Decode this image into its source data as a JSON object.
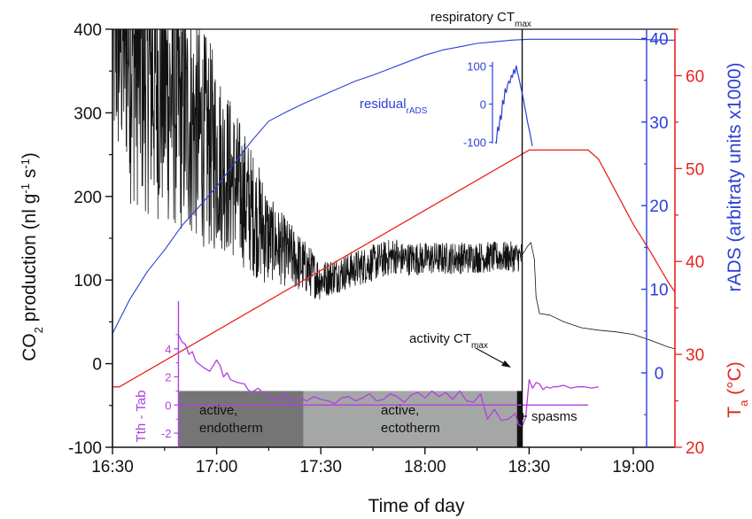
{
  "chart_data": {
    "type": "line",
    "xlabel": "Time of day",
    "x_ticks": [
      "16:30",
      "17:00",
      "17:30",
      "18:00",
      "18:30",
      "19:00"
    ],
    "x_range": [
      "16:30",
      "19:12"
    ],
    "axes": {
      "left": {
        "label_main": "CO",
        "label_sub1": "2",
        "label_mid": " production (nl g",
        "label_sup1": "-1",
        "label_mid2": " s",
        "label_sup2": "-1",
        "label_end": ")",
        "range": [
          -100,
          400
        ],
        "ticks": [
          "-100",
          "0",
          "100",
          "200",
          "300",
          "400"
        ],
        "color": "#111111"
      },
      "right_inner": {
        "label": "rADS (arbitraty units x1000)",
        "range": [
          -8.9,
          41.1
        ],
        "ticks": [
          "0",
          "10",
          "20",
          "30",
          "40"
        ],
        "color": "#2a3fd6"
      },
      "right_outer": {
        "label_main": "T",
        "label_sub": "a",
        "label_end": " (°C)",
        "range": [
          20,
          65
        ],
        "ticks": [
          "20",
          "30",
          "40",
          "50",
          "60"
        ],
        "color": "#e8231e"
      },
      "inset_left": {
        "label": "Tth - Tab",
        "range": [
          -3,
          6
        ],
        "ticks": [
          "-2",
          "0",
          "2",
          "4"
        ],
        "color": "#b040e0"
      },
      "residual": {
        "label_main": "residual",
        "label_sub": "rADS",
        "range": [
          -110,
          110
        ],
        "ticks": [
          "-100",
          "0",
          "100"
        ],
        "color": "#2a3fd6"
      }
    },
    "annotations": {
      "respiratory_main": "respiratory CT",
      "respiratory_sub": "max",
      "activity_main": "activity CT",
      "activity_sub": "max",
      "spasms": "spasms",
      "active_endo_1": "active,",
      "active_endo_2": "endotherm",
      "active_ecto_1": "active,",
      "active_ecto_2": "ectotherm"
    },
    "phases": [
      {
        "name": "active, endotherm",
        "start_min": 19,
        "end_min": 55,
        "color": "#757575"
      },
      {
        "name": "active, ectotherm",
        "start_min": 55,
        "end_min": 116.5,
        "color": "#a4a7a6"
      },
      {
        "name": "spasms",
        "start_min": 116.5,
        "end_min": 118,
        "color": "#111111"
      }
    ],
    "respiratory_ctmax_min": 118,
    "series": [
      {
        "name": "CO2 production",
        "axis": "left",
        "color": "#111111",
        "stroke_width": 0.8,
        "segments": [
          {
            "t0": 0,
            "t1": 5,
            "a0": 410,
            "a1": 390,
            "amp0": 180,
            "amp1": 170,
            "n": 60
          },
          {
            "t0": 5,
            "t1": 30,
            "a0": 380,
            "a1": 250,
            "amp0": 190,
            "amp1": 120,
            "n": 300
          },
          {
            "t0": 30,
            "t1": 45,
            "a0": 250,
            "a1": 150,
            "amp0": 110,
            "amp1": 60,
            "n": 180
          },
          {
            "t0": 45,
            "t1": 60,
            "a0": 150,
            "a1": 100,
            "amp0": 50,
            "amp1": 25,
            "n": 180
          },
          {
            "t0": 60,
            "t1": 82,
            "a0": 100,
            "a1": 130,
            "amp0": 22,
            "amp1": 22,
            "n": 260
          },
          {
            "t0": 82,
            "t1": 118,
            "a0": 125,
            "a1": 128,
            "amp0": 20,
            "amp1": 18,
            "n": 420
          }
        ],
        "tail": [
          [
            118,
            130
          ],
          [
            119.5,
            140
          ],
          [
            120.5,
            145
          ],
          [
            121.5,
            125
          ],
          [
            122,
            80
          ],
          [
            123,
            60
          ],
          [
            126,
            58
          ],
          [
            130,
            50
          ],
          [
            135,
            43
          ],
          [
            140,
            40
          ],
          [
            145,
            38
          ],
          [
            150,
            35
          ],
          [
            155,
            28
          ],
          [
            160,
            20
          ],
          [
            166,
            13
          ]
        ]
      },
      {
        "name": "rADS",
        "axis": "right_inner",
        "color": "#2a3fd6",
        "stroke_width": 1.1,
        "x": [
          0,
          5,
          10,
          15,
          20,
          25,
          30,
          35,
          40,
          45,
          50,
          55,
          60,
          65,
          70,
          75,
          80,
          85,
          90,
          95,
          100,
          105,
          110,
          115,
          120,
          125,
          130,
          140,
          150,
          160,
          166
        ],
        "y": [
          4.7,
          8.8,
          12.1,
          14.7,
          17.6,
          19.9,
          22.3,
          25,
          27.7,
          30.1,
          31.2,
          32.2,
          33.1,
          34,
          34.9,
          35.6,
          36.4,
          37.2,
          38,
          38.6,
          39,
          39.4,
          39.6,
          39.8,
          39.9,
          39.9,
          39.9,
          39.9,
          39.9,
          39.8,
          39.8
        ]
      },
      {
        "name": "Ta",
        "axis": "right_outer",
        "color": "#e8231e",
        "stroke_width": 1.3,
        "x": [
          0,
          2,
          120,
          137,
          140,
          145,
          150,
          155,
          160,
          166
        ],
        "y": [
          26.5,
          26.5,
          52,
          52,
          51,
          47.5,
          44,
          41,
          37.8,
          34.5
        ]
      },
      {
        "name": "Tth - Tab",
        "axis": "inset_left",
        "color": "#b040e0",
        "stroke_width": 1.3,
        "x": [
          19,
          20,
          21,
          22,
          23,
          24,
          25,
          26,
          28,
          30,
          31,
          32,
          33,
          34,
          36,
          38,
          39,
          40,
          42,
          44,
          46,
          48,
          50,
          52,
          53,
          54,
          55,
          56,
          58,
          60,
          62,
          64,
          66,
          68,
          70,
          72,
          74,
          76,
          78,
          80,
          82,
          84,
          86,
          88,
          90,
          92,
          94,
          96,
          98,
          100,
          102,
          104,
          106,
          108,
          110,
          112,
          114,
          116,
          117,
          118,
          119,
          120,
          121,
          122,
          123,
          124,
          125,
          126,
          127,
          128,
          130,
          132,
          134,
          136,
          138,
          140
        ],
        "y": [
          5,
          4.5,
          4.3,
          3.6,
          3.8,
          3.1,
          2.9,
          2.7,
          2.4,
          3.2,
          2.8,
          2.0,
          2.3,
          1.8,
          1.6,
          1.5,
          1.1,
          0.9,
          1.2,
          0.7,
          0.5,
          0.3,
          0.8,
          0.2,
          0.4,
          0.4,
          0.4,
          0.3,
          0.6,
          0.4,
          0.3,
          0.1,
          0.5,
          0.6,
          0.3,
          0.5,
          0.8,
          0.3,
          0.4,
          0.8,
          0.6,
          0.2,
          0.7,
          0.9,
          0.5,
          1.0,
          0.6,
          0.9,
          0.4,
          1.0,
          0.3,
          0.2,
          0.8,
          -1.0,
          -0.3,
          -1.1,
          -1.0,
          -0.6,
          -1.4,
          -1.5,
          -0.9,
          1.8,
          1.2,
          1.6,
          1.5,
          1.1,
          1.3,
          1.2,
          1.3,
          1.3,
          1.4,
          1.2,
          1.3,
          1.3,
          1.2,
          1.3
        ]
      },
      {
        "name": "residual rADS",
        "axis": "residual",
        "color": "#2a3fd6",
        "stroke_width": 1.2,
        "x": [
          0,
          1,
          2,
          3,
          4,
          5,
          6,
          7,
          8,
          9,
          10,
          11,
          12,
          13,
          14,
          15,
          16,
          17,
          18,
          19,
          20,
          21,
          22,
          23,
          24,
          25,
          26,
          27,
          28,
          30
        ],
        "y": [
          -100,
          -102,
          -60,
          -70,
          -30,
          -40,
          10,
          0,
          40,
          30,
          50,
          60,
          55,
          75,
          70,
          90,
          80,
          100,
          85,
          70,
          55,
          40,
          25,
          10,
          -10,
          -25,
          -45,
          -60,
          -75,
          -110
        ]
      }
    ]
  }
}
